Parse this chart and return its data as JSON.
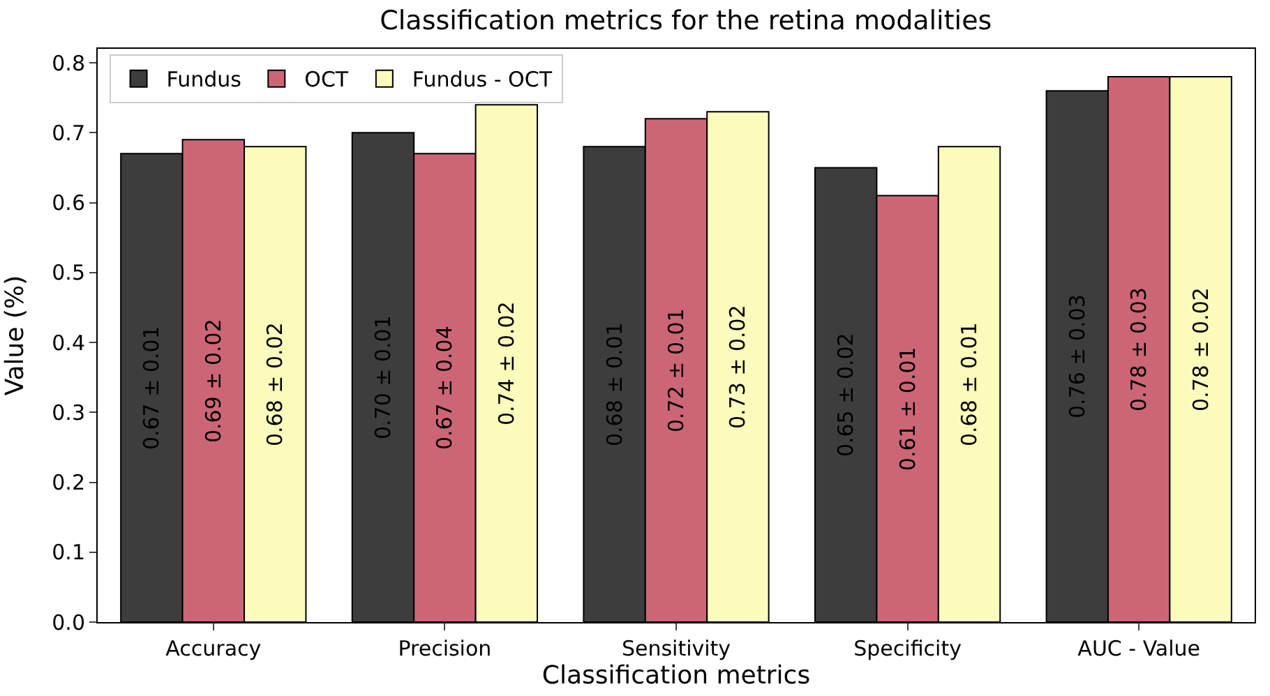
{
  "chart_data": {
    "type": "bar",
    "title": "Classification metrics for the retina modalities",
    "xlabel": "Classification metrics",
    "ylabel": "Value (%)",
    "categories": [
      "Accuracy",
      "Precision",
      "Sensitivity",
      "Specificity",
      "AUC - Value"
    ],
    "series": [
      {
        "name": "Fundus",
        "color": "#3d3d3d",
        "values": [
          0.67,
          0.7,
          0.68,
          0.65,
          0.76
        ],
        "value_labels": [
          "0.67 ± 0.01",
          "0.70 ± 0.01",
          "0.68 ± 0.01",
          "0.65 ± 0.02",
          "0.76 ± 0.03"
        ]
      },
      {
        "name": "OCT",
        "color": "#cc6677",
        "values": [
          0.69,
          0.67,
          0.72,
          0.61,
          0.78
        ],
        "value_labels": [
          "0.69 ± 0.02",
          "0.67 ± 0.04",
          "0.72 ± 0.01",
          "0.61 ± 0.01",
          "0.78 ± 0.03"
        ]
      },
      {
        "name": "Fundus - OCT",
        "color": "#fbfbbb",
        "values": [
          0.68,
          0.74,
          0.73,
          0.68,
          0.78
        ],
        "value_labels": [
          "0.68 ± 0.02",
          "0.74 ± 0.02",
          "0.73 ± 0.02",
          "0.68 ± 0.01",
          "0.78 ± 0.02"
        ]
      }
    ],
    "ylim": [
      0,
      0.82
    ],
    "yticks": [
      {
        "value": 0,
        "label": "0.0"
      },
      0.1,
      0.2,
      0.3,
      0.4,
      0.5,
      0.6,
      0.7,
      0.8
    ],
    "legend": "top left"
  }
}
